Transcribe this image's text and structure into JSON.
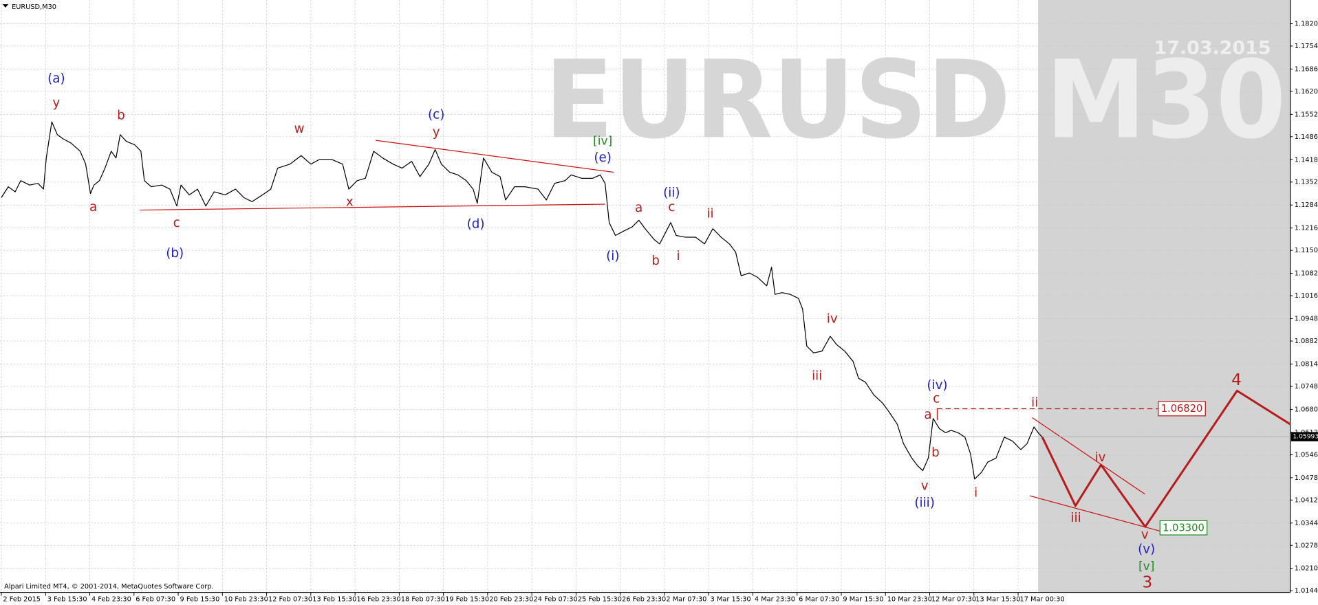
{
  "chart_data": {
    "type": "line",
    "title": "EURUSD,M30",
    "watermark": "EURUSD M30",
    "date_watermark": "17.03.2015",
    "copyright": "Alpari Limited MT4, © 2001-2014, MetaQuotes Software Corp.",
    "grid": true,
    "xlim": [
      0,
      1868
    ],
    "xticks": [
      {
        "value": 2,
        "label": "2 Feb 2015"
      },
      {
        "value": 66,
        "label": "3 Feb 15:30"
      },
      {
        "value": 130,
        "label": "4 Feb 23:30"
      },
      {
        "value": 194,
        "label": "6 Feb 07:30"
      },
      {
        "value": 258,
        "label": "9 Feb 15:30"
      },
      {
        "value": 322,
        "label": "10 Feb 23:30"
      },
      {
        "value": 386,
        "label": "12 Feb 07:30"
      },
      {
        "value": 450,
        "label": "13 Feb 15:30"
      },
      {
        "value": 514,
        "label": "16 Feb 23:30"
      },
      {
        "value": 578,
        "label": "18 Feb 07:30"
      },
      {
        "value": 642,
        "label": "19 Feb 15:30"
      },
      {
        "value": 706,
        "label": "20 Feb 23:30"
      },
      {
        "value": 770,
        "label": "24 Feb 07:30"
      },
      {
        "value": 834,
        "label": "25 Feb 15:30"
      },
      {
        "value": 898,
        "label": "26 Feb 23:30"
      },
      {
        "value": 962,
        "label": "2 Mar 07:30"
      },
      {
        "value": 1026,
        "label": "3 Mar 15:30"
      },
      {
        "value": 1090,
        "label": "4 Mar 23:30"
      },
      {
        "value": 1154,
        "label": "6 Mar 07:30"
      },
      {
        "value": 1218,
        "label": "9 Mar 15:30"
      },
      {
        "value": 1282,
        "label": "10 Mar 23:30"
      },
      {
        "value": 1346,
        "label": "12 Mar 07:30"
      },
      {
        "value": 1410,
        "label": "13 Mar 15:30"
      },
      {
        "value": 1474,
        "label": "17 Mar 00:30"
      }
    ],
    "ylim": [
      1.0139,
      1.189
    ],
    "yticks": [
      {
        "value": 1.182,
        "label": "1.18200"
      },
      {
        "value": 1.1754,
        "label": "1.17540"
      },
      {
        "value": 1.1686,
        "label": "1.16860"
      },
      {
        "value": 1.162,
        "label": "1.16200"
      },
      {
        "value": 1.1552,
        "label": "1.15520"
      },
      {
        "value": 1.1486,
        "label": "1.14860"
      },
      {
        "value": 1.1418,
        "label": "1.14180"
      },
      {
        "value": 1.1352,
        "label": "1.13520"
      },
      {
        "value": 1.1284,
        "label": "1.12840"
      },
      {
        "value": 1.1216,
        "label": "1.12160"
      },
      {
        "value": 1.115,
        "label": "1.11500"
      },
      {
        "value": 1.1082,
        "label": "1.10820"
      },
      {
        "value": 1.1016,
        "label": "1.10160"
      },
      {
        "value": 1.0948,
        "label": "1.09480"
      },
      {
        "value": 1.0882,
        "label": "1.08820"
      },
      {
        "value": 1.0814,
        "label": "1.08140"
      },
      {
        "value": 1.0748,
        "label": "1.07480"
      },
      {
        "value": 1.068,
        "label": "1.06800"
      },
      {
        "value": 1.0612,
        "label": "1.06120"
      },
      {
        "value": 1.0546,
        "label": "1.05460"
      },
      {
        "value": 1.0478,
        "label": "1.04780"
      },
      {
        "value": 1.0412,
        "label": "1.04120"
      },
      {
        "value": 1.0344,
        "label": "1.03440"
      },
      {
        "value": 1.0278,
        "label": "1.02780"
      },
      {
        "value": 1.021,
        "label": "1.02100"
      },
      {
        "value": 1.0144,
        "label": "1.01440"
      }
    ],
    "series": [
      {
        "color": "#000000",
        "line_width": 1,
        "x": [
          2,
          12,
          22,
          30,
          43,
          55,
          63,
          67,
          75,
          83,
          91,
          103,
          116,
          124,
          131,
          136,
          144,
          152,
          161,
          168,
          174,
          183,
          195,
          204,
          209,
          219,
          234,
          246,
          256,
          262,
          274,
          286,
          298,
          310,
          326,
          341,
          353,
          365,
          380,
          392,
          402,
          420,
          436,
          450,
          462,
          481,
          496,
          505,
          517,
          529,
          541,
          554,
          569,
          582,
          596,
          608,
          621,
          630,
          639,
          651,
          663,
          675,
          685,
          691,
          700,
          712,
          724,
          732,
          745,
          760,
          779,
          791,
          803,
          818,
          827,
          842,
          858,
          869,
          876,
          882,
          891,
          903,
          915,
          925,
          934,
          947,
          955,
          971,
          979,
          992,
          1007,
          1020,
          1032,
          1044,
          1056,
          1065,
          1073,
          1085,
          1097,
          1110,
          1117,
          1122,
          1132,
          1144,
          1156,
          1162,
          1168,
          1178,
          1190,
          1202,
          1211,
          1223,
          1235,
          1243,
          1253,
          1265,
          1278,
          1287,
          1299,
          1308,
          1320,
          1329,
          1336,
          1344,
          1351,
          1360,
          1369,
          1377,
          1387,
          1397,
          1405,
          1411,
          1421,
          1430,
          1442,
          1454,
          1466,
          1478,
          1487,
          1497,
          1503,
          1509
        ],
        "values": [
          1.1306,
          1.1338,
          1.1323,
          1.1356,
          1.1343,
          1.1348,
          1.1331,
          1.1423,
          1.153,
          1.1492,
          1.148,
          1.1467,
          1.1443,
          1.1405,
          1.1318,
          1.1343,
          1.1356,
          1.1393,
          1.1443,
          1.1423,
          1.1492,
          1.1472,
          1.1462,
          1.1443,
          1.1356,
          1.1338,
          1.1343,
          1.1331,
          1.1281,
          1.1343,
          1.1314,
          1.1331,
          1.1281,
          1.1323,
          1.1314,
          1.1331,
          1.1306,
          1.1294,
          1.1314,
          1.1331,
          1.1393,
          1.1405,
          1.143,
          1.1405,
          1.1418,
          1.1418,
          1.1405,
          1.1331,
          1.1356,
          1.1363,
          1.1443,
          1.1423,
          1.1405,
          1.1393,
          1.1413,
          1.1368,
          1.1405,
          1.1448,
          1.1405,
          1.1381,
          1.1373,
          1.1356,
          1.1331,
          1.1289,
          1.1423,
          1.1381,
          1.1368,
          1.1299,
          1.1338,
          1.1338,
          1.1331,
          1.1299,
          1.1348,
          1.1356,
          1.1373,
          1.1363,
          1.1363,
          1.1373,
          1.1348,
          1.1232,
          1.1194,
          1.1207,
          1.1219,
          1.1239,
          1.1214,
          1.1182,
          1.1169,
          1.1232,
          1.1194,
          1.1189,
          1.1189,
          1.1169,
          1.1214,
          1.1189,
          1.1169,
          1.1145,
          1.1075,
          1.1083,
          1.107,
          1.1045,
          1.11,
          1.102,
          1.1025,
          1.102,
          1.1008,
          1.0976,
          1.0867,
          1.0847,
          1.0852,
          1.0896,
          1.0872,
          1.0852,
          1.0822,
          1.0772,
          1.076,
          1.0723,
          1.0698,
          1.0673,
          1.0636,
          1.0579,
          1.0536,
          1.0512,
          1.0499,
          1.0536,
          1.0653,
          1.0623,
          1.0611,
          1.0618,
          1.0611,
          1.0598,
          1.0549,
          1.0474,
          1.0494,
          1.0524,
          1.0536,
          1.0598,
          1.0586,
          1.0561,
          1.0579,
          1.0628,
          1.0611,
          1.0598
        ]
      },
      {
        "color": "#b71c1c",
        "line_width": 2.5,
        "x": [
          1509,
          1557,
          1594,
          1658,
          1791,
          1868
        ],
        "values": [
          1.0598,
          1.0395,
          1.0516,
          1.0333,
          1.0735,
          1.0636
        ]
      }
    ],
    "current_price": {
      "value": 1.05993,
      "label": "1.05993"
    },
    "levels": [
      {
        "value": 1.0682,
        "label": "1.06820",
        "color": "#b71c1c",
        "dashed": true
      },
      {
        "value": 1.033,
        "label": "1.03300",
        "color": "#1e8c1e",
        "dashed": false
      }
    ],
    "annotations": [
      {
        "text": "(a)",
        "color": "#1e1ec8"
      },
      {
        "text": "y",
        "color": "#b71c1c"
      },
      {
        "text": "b",
        "color": "#b71c1c"
      },
      {
        "text": "a",
        "color": "#b71c1c"
      },
      {
        "text": "c",
        "color": "#b71c1c"
      },
      {
        "text": "(b)",
        "color": "#1e1ec8"
      },
      {
        "text": "w",
        "color": "#b71c1c"
      },
      {
        "text": "x",
        "color": "#b71c1c"
      },
      {
        "text": "(c)",
        "color": "#1e1ec8"
      },
      {
        "text": "y",
        "color": "#b71c1c"
      },
      {
        "text": "(d)",
        "color": "#1e1ec8"
      },
      {
        "text": "[iv]",
        "color": "#1e8c1e"
      },
      {
        "text": "(e)",
        "color": "#1e1ec8"
      },
      {
        "text": "(i)",
        "color": "#1e1ec8"
      },
      {
        "text": "a",
        "color": "#b71c1c"
      },
      {
        "text": "(ii)",
        "color": "#1e1ec8"
      },
      {
        "text": "c",
        "color": "#b71c1c"
      },
      {
        "text": "b",
        "color": "#b71c1c"
      },
      {
        "text": "i",
        "color": "#b71c1c"
      },
      {
        "text": "ii",
        "color": "#b71c1c"
      },
      {
        "text": "iv",
        "color": "#b71c1c"
      },
      {
        "text": "iii",
        "color": "#b71c1c"
      },
      {
        "text": "(iv)",
        "color": "#1e1ec8"
      },
      {
        "text": "c",
        "color": "#b71c1c"
      },
      {
        "text": "a",
        "color": "#b71c1c"
      },
      {
        "text": "b",
        "color": "#b71c1c"
      },
      {
        "text": "v",
        "color": "#b71c1c"
      },
      {
        "text": "(iii)",
        "color": "#1e1ec8"
      },
      {
        "text": "i",
        "color": "#b71c1c"
      },
      {
        "text": "ii",
        "color": "#b71c1c"
      },
      {
        "text": "iv",
        "color": "#b71c1c"
      },
      {
        "text": "iii",
        "color": "#b71c1c"
      },
      {
        "text": "v",
        "color": "#b71c1c"
      },
      {
        "text": "(v)",
        "color": "#1e1ec8"
      },
      {
        "text": "[v]",
        "color": "#1e8c1e"
      },
      {
        "text": "3",
        "color": "#b71c1c"
      },
      {
        "text": "4",
        "color": "#b71c1c"
      }
    ]
  }
}
